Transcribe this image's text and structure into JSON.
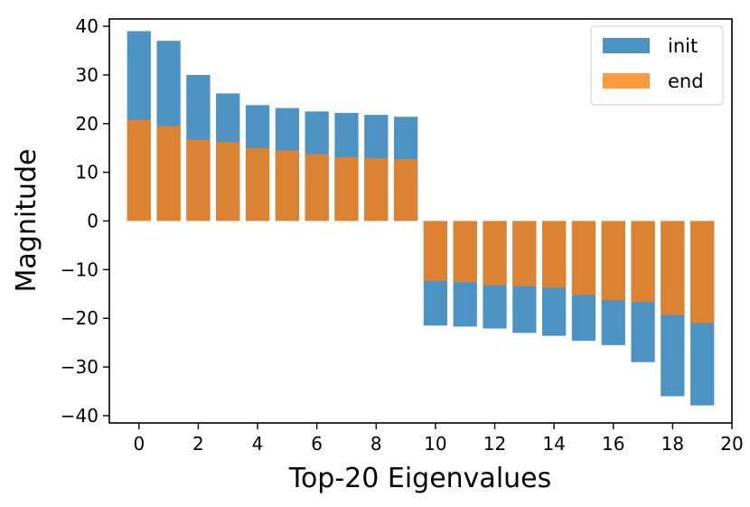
{
  "chart_data": {
    "type": "bar",
    "title": "",
    "xlabel": "Top-20 Eigenvalues",
    "ylabel": "Magnitude",
    "xlim": [
      -1,
      20
    ],
    "ylim": [
      -41.5,
      41.5
    ],
    "xticks": [
      0,
      2,
      4,
      6,
      8,
      10,
      12,
      14,
      16,
      18,
      20
    ],
    "xtick_labels": [
      "0",
      "2",
      "4",
      "6",
      "8",
      "10",
      "12",
      "14",
      "16",
      "18",
      "20"
    ],
    "yticks": [
      40,
      30,
      20,
      10,
      0,
      -10,
      -20,
      -30,
      -40
    ],
    "ytick_labels": [
      "40",
      "30",
      "20",
      "10",
      "0",
      "−10",
      "−20",
      "−30",
      "−40"
    ],
    "grid": false,
    "legend_position": "top-right",
    "categories": [
      0,
      1,
      2,
      3,
      4,
      5,
      6,
      7,
      8,
      9,
      10,
      11,
      12,
      13,
      14,
      15,
      16,
      17,
      18,
      19
    ],
    "series": [
      {
        "name": "init",
        "color": "#1f77b4",
        "values": [
          39.0,
          37.0,
          30.0,
          26.2,
          23.8,
          23.2,
          22.5,
          22.2,
          21.8,
          21.4,
          -21.5,
          -21.7,
          -22.1,
          -23.0,
          -23.6,
          -24.6,
          -25.5,
          -29.0,
          -36.0,
          -37.9
        ]
      },
      {
        "name": "end",
        "color": "#ff7f0e",
        "values": [
          20.8,
          19.5,
          16.7,
          16.2,
          15.0,
          14.5,
          13.7,
          13.1,
          12.9,
          12.7,
          -12.3,
          -12.6,
          -13.2,
          -13.4,
          -13.7,
          -15.2,
          -16.3,
          -16.7,
          -19.3,
          -21.0
        ]
      }
    ]
  }
}
